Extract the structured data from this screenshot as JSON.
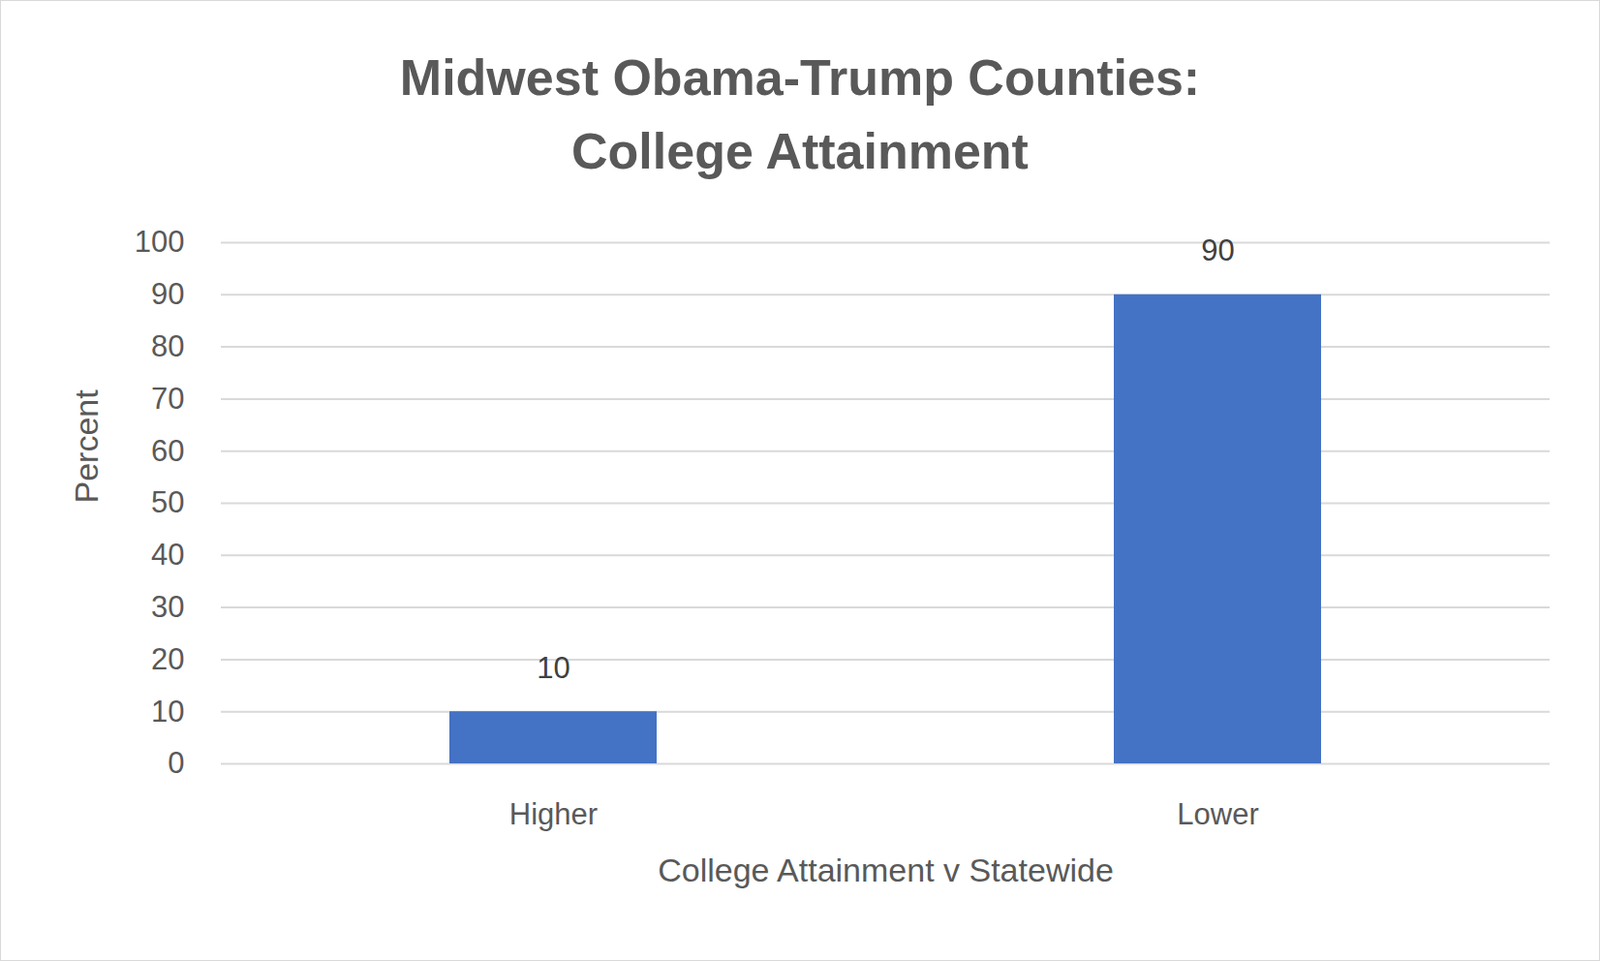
{
  "chart_data": {
    "type": "bar",
    "title": "Midwest Obama-Trump Counties:\nCollege Attainment",
    "x_label": "College Attainment v Statewide",
    "y_label": "Percent",
    "categories": [
      "Higher",
      "Lower"
    ],
    "values": [
      10,
      90
    ],
    "color": "#4472c4",
    "ylim": [
      0,
      100
    ],
    "yticks": [
      0,
      10,
      20,
      30,
      40,
      50,
      60,
      70,
      80,
      90,
      100
    ],
    "grid": true,
    "data_labels": true
  }
}
